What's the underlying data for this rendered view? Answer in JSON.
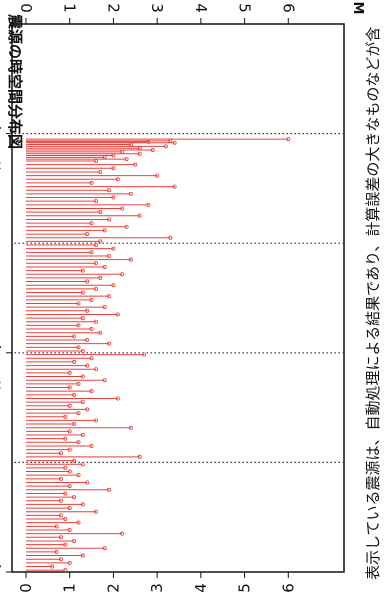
{
  "chart_data": {
    "type": "bar",
    "title": "",
    "ylabel": "M",
    "xlabel": "",
    "ylim": [
      0,
      7
    ],
    "y_ticks": [
      "0",
      "1",
      "2",
      "3",
      "4",
      "5",
      "6"
    ],
    "x_tick_labels": [
      "08時00分",
      "10時00分",
      "12時00分"
    ],
    "x_range_minutes": [
      420,
      720
    ],
    "x_ticks_minutes": [
      480,
      600,
      720
    ],
    "vertical_dotted_lines_minutes": [
      420,
      480,
      540,
      600,
      660,
      720
    ],
    "grid": false,
    "footnote": "表示している震源は、自動処理による結果であり、計算誤差の大きなものなどが含",
    "series": [
      {
        "color": "#e8413c",
        "x_minutes": [
          483,
          484,
          484.5,
          485,
          486,
          487,
          488,
          489,
          490,
          491,
          492,
          493,
          494,
          495,
          497,
          499,
          501,
          503,
          505,
          507,
          509,
          511,
          513,
          515,
          517,
          519,
          521,
          523,
          525,
          527,
          529,
          531,
          533,
          535,
          537,
          539,
          541,
          543,
          545,
          547,
          549,
          551,
          553,
          555,
          557,
          559,
          561,
          563,
          565,
          567,
          569,
          571,
          573,
          575,
          577,
          579,
          581,
          583,
          585,
          587,
          589,
          591,
          593,
          595,
          597,
          599,
          601,
          603,
          605,
          607,
          609,
          611,
          613,
          615,
          617,
          619,
          621,
          623,
          625,
          627,
          629,
          631,
          633,
          635,
          637,
          639,
          641,
          643,
          645,
          647,
          649,
          651,
          653,
          655,
          657,
          659,
          661,
          663,
          665,
          667,
          669,
          671,
          673,
          675,
          677,
          679,
          681,
          683,
          685,
          687,
          689,
          691,
          693,
          695,
          697,
          699,
          701,
          703,
          705,
          707,
          709,
          711,
          713,
          715,
          717,
          719
        ],
        "values": [
          6.0,
          3.3,
          2.8,
          3.4,
          2.4,
          3.2,
          2.6,
          2.9,
          2.2,
          2.6,
          2.0,
          1.8,
          2.3,
          1.6,
          2.5,
          2.0,
          1.7,
          3.0,
          2.1,
          1.5,
          3.4,
          1.9,
          2.4,
          2.0,
          1.6,
          2.8,
          2.2,
          1.7,
          2.6,
          1.9,
          1.5,
          2.3,
          1.8,
          1.4,
          3.3,
          1.7,
          1.6,
          2.0,
          1.5,
          1.9,
          2.4,
          1.6,
          1.8,
          1.3,
          2.2,
          1.7,
          1.4,
          2.0,
          1.6,
          1.3,
          1.9,
          1.5,
          1.2,
          1.8,
          1.4,
          2.1,
          1.3,
          1.6,
          1.2,
          1.5,
          1.7,
          1.1,
          1.4,
          1.9,
          1.2,
          1.3,
          2.7,
          1.5,
          1.1,
          1.4,
          1.6,
          1.0,
          1.3,
          1.8,
          1.2,
          1.0,
          1.5,
          1.1,
          2.1,
          1.3,
          1.0,
          1.4,
          1.2,
          0.9,
          1.6,
          1.1,
          2.4,
          1.0,
          1.3,
          0.9,
          1.2,
          1.5,
          1.0,
          0.8,
          2.6,
          1.1,
          1.3,
          0.9,
          1.0,
          1.2,
          0.8,
          1.4,
          1.0,
          1.9,
          0.9,
          1.1,
          0.8,
          1.3,
          1.0,
          1.6,
          0.8,
          0.9,
          1.2,
          0.7,
          1.0,
          2.2,
          0.8,
          1.1,
          0.9,
          1.8,
          0.7,
          1.3,
          0.8,
          1.0,
          0.6,
          0.9
        ]
      }
    ]
  },
  "header_fragment": "震源の時空間分布図"
}
